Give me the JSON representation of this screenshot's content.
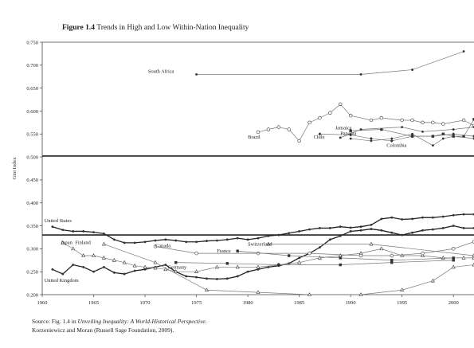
{
  "figure": {
    "label": "Figure 1.4",
    "title": "Trends in High and Low Within-Nation Inequality"
  },
  "source": {
    "prefix": "Source: Fig. 1.4 in ",
    "book": "Unveiling Inequality: A World-Historical Perspective.",
    "line2": "Korzeniewicz and Moran (Russell Sage Foundation, 2009)."
  },
  "chart_data": {
    "type": "line",
    "title": "Trends in High and Low Within-Nation Inequality",
    "xlabel": "",
    "ylabel": "Gini Index",
    "xlim": [
      1960,
      2002
    ],
    "ylim": [
      0.2,
      0.75
    ],
    "grid": false,
    "x_ticks": [
      1960,
      1965,
      1970,
      1975,
      1980,
      1985,
      1990,
      1995,
      2000
    ],
    "y_ticks": [
      0.2,
      0.25,
      0.3,
      0.35,
      0.4,
      0.45,
      0.5,
      0.55,
      0.6,
      0.65,
      0.7,
      0.75
    ],
    "x_tick_labels": [
      "1960",
      "1965",
      "1970",
      "1975",
      "1980",
      "1985",
      "1990",
      "1995",
      "2000"
    ],
    "y_tick_labels": [
      "0.200",
      "0.250",
      "0.300",
      "0.350",
      "0.400",
      "0.450",
      "0.500",
      "0.550",
      "0.600",
      "0.650",
      "0.700",
      "0.750"
    ],
    "reference_lines": [
      0.502,
      0.33
    ],
    "series": [
      {
        "name": "South Africa",
        "marker": "dot",
        "x": [
          1975,
          1991,
          1996,
          2001
        ],
        "y": [
          0.68,
          0.68,
          0.69,
          0.73
        ]
      },
      {
        "name": "Brazil",
        "marker": "circle",
        "x": [
          1981,
          1982,
          1983,
          1984,
          1985,
          1986,
          1987,
          1988,
          1989,
          1990,
          1992,
          1993,
          1995,
          1996,
          1997,
          1998,
          1999,
          2001,
          2002
        ],
        "y": [
          0.554,
          0.56,
          0.565,
          0.56,
          0.535,
          0.575,
          0.585,
          0.596,
          0.615,
          0.59,
          0.58,
          0.585,
          0.58,
          0.58,
          0.575,
          0.575,
          0.572,
          0.58,
          0.568
        ]
      },
      {
        "name": "Jamaica",
        "marker": "square",
        "x": [
          1990,
          1993,
          1996,
          1998,
          1999,
          2000,
          2001,
          2002
        ],
        "y": [
          0.557,
          0.56,
          0.545,
          0.545,
          0.55,
          0.545,
          0.545,
          0.582
        ]
      },
      {
        "name": "Panama",
        "marker": "dot",
        "x": [
          1989,
          1991,
          1995,
          1997,
          2000,
          2002
        ],
        "y": [
          0.542,
          0.56,
          0.565,
          0.555,
          0.56,
          0.565
        ]
      },
      {
        "name": "Chile",
        "marker": "diamond",
        "x": [
          1987,
          1990,
          1992,
          1994,
          1996,
          1998,
          2000,
          2002
        ],
        "y": [
          0.55,
          0.548,
          0.54,
          0.535,
          0.545,
          0.545,
          0.55,
          0.545
        ]
      },
      {
        "name": "Colombia",
        "marker": "dot",
        "x": [
          1990,
          1992,
          1994,
          1996,
          1998,
          1999,
          2000,
          2002
        ],
        "y": [
          0.54,
          0.535,
          0.54,
          0.55,
          0.525,
          0.54,
          0.545,
          0.54
        ]
      },
      {
        "name": "United States",
        "marker": "dot",
        "x": [
          1961,
          1962,
          1963,
          1964,
          1965,
          1966,
          1967,
          1968,
          1969,
          1970,
          1971,
          1972,
          1973,
          1974,
          1975,
          1976,
          1977,
          1978,
          1979,
          1980,
          1981,
          1982,
          1983,
          1984,
          1985,
          1986,
          1987,
          1988,
          1989,
          1990,
          1991,
          1992,
          1993,
          1994,
          1995,
          1996,
          1997,
          1998,
          1999,
          2000,
          2001,
          2002
        ],
        "y": [
          0.348,
          0.341,
          0.338,
          0.338,
          0.336,
          0.333,
          0.32,
          0.313,
          0.313,
          0.315,
          0.318,
          0.32,
          0.318,
          0.315,
          0.315,
          0.317,
          0.318,
          0.32,
          0.323,
          0.32,
          0.323,
          0.328,
          0.33,
          0.334,
          0.338,
          0.342,
          0.345,
          0.345,
          0.348,
          0.346,
          0.348,
          0.352,
          0.365,
          0.368,
          0.364,
          0.365,
          0.368,
          0.368,
          0.37,
          0.373,
          0.375,
          0.375
        ]
      },
      {
        "name": "United Kingdom",
        "marker": "dot",
        "x": [
          1961,
          1962,
          1963,
          1964,
          1965,
          1966,
          1967,
          1968,
          1969,
          1970,
          1971,
          1972,
          1973,
          1974,
          1975,
          1976,
          1977,
          1978,
          1979,
          1980,
          1981,
          1982,
          1983,
          1984,
          1985,
          1986,
          1987,
          1988,
          1989,
          1990,
          1991,
          1992,
          1993,
          1994,
          1995,
          1996,
          1997,
          1998,
          1999,
          2000,
          2001,
          2002
        ],
        "y": [
          0.255,
          0.245,
          0.265,
          0.26,
          0.25,
          0.26,
          0.248,
          0.245,
          0.252,
          0.255,
          0.26,
          0.265,
          0.25,
          0.24,
          0.238,
          0.235,
          0.234,
          0.235,
          0.24,
          0.25,
          0.255,
          0.26,
          0.263,
          0.268,
          0.28,
          0.29,
          0.303,
          0.32,
          0.328,
          0.338,
          0.34,
          0.343,
          0.34,
          0.335,
          0.33,
          0.335,
          0.34,
          0.342,
          0.345,
          0.35,
          0.345,
          0.345
        ]
      },
      {
        "name": "Japan",
        "marker": "triangle",
        "x": [
          1962,
          1963,
          1964,
          1965,
          1966,
          1967,
          1968,
          1969,
          1970,
          1971,
          1972,
          1973,
          1975,
          1977,
          1979,
          1981,
          1983,
          1985,
          1987,
          1989,
          1991,
          1993,
          1995,
          1997,
          1999,
          2001,
          2002
        ],
        "y": [
          0.313,
          0.3,
          0.285,
          0.285,
          0.28,
          0.275,
          0.27,
          0.263,
          0.26,
          0.258,
          0.255,
          0.25,
          0.25,
          0.26,
          0.26,
          0.26,
          0.265,
          0.27,
          0.28,
          0.285,
          0.29,
          0.3,
          0.285,
          0.285,
          0.28,
          0.28,
          0.28
        ]
      },
      {
        "name": "Finland",
        "marker": "triangle",
        "x": [
          1966,
          1971,
          1976,
          1981,
          1986,
          1991,
          1995,
          1998,
          2000,
          2002
        ],
        "y": [
          0.31,
          0.27,
          0.21,
          0.205,
          0.2,
          0.2,
          0.21,
          0.23,
          0.26,
          0.265
        ]
      },
      {
        "name": "Canada",
        "marker": "circle",
        "x": [
          1971,
          1975,
          1981,
          1986,
          1991,
          1994,
          1997,
          2000,
          2002
        ],
        "y": [
          0.305,
          0.29,
          0.29,
          0.29,
          0.285,
          0.285,
          0.29,
          0.3,
          0.315
        ]
      },
      {
        "name": "Switzerland",
        "marker": "triangle",
        "x": [
          1982,
          1992,
          2002
        ],
        "y": [
          0.31,
          0.31,
          0.285
        ]
      },
      {
        "name": "France",
        "marker": "square",
        "x": [
          1979,
          1984,
          1989,
          1994,
          2000
        ],
        "y": [
          0.295,
          0.285,
          0.28,
          0.275,
          0.28
        ]
      },
      {
        "name": "Germany",
        "marker": "square",
        "x": [
          1973,
          1978,
          1983,
          1989,
          1994,
          2000
        ],
        "y": [
          0.27,
          0.268,
          0.265,
          0.265,
          0.27,
          0.275
        ]
      }
    ]
  }
}
